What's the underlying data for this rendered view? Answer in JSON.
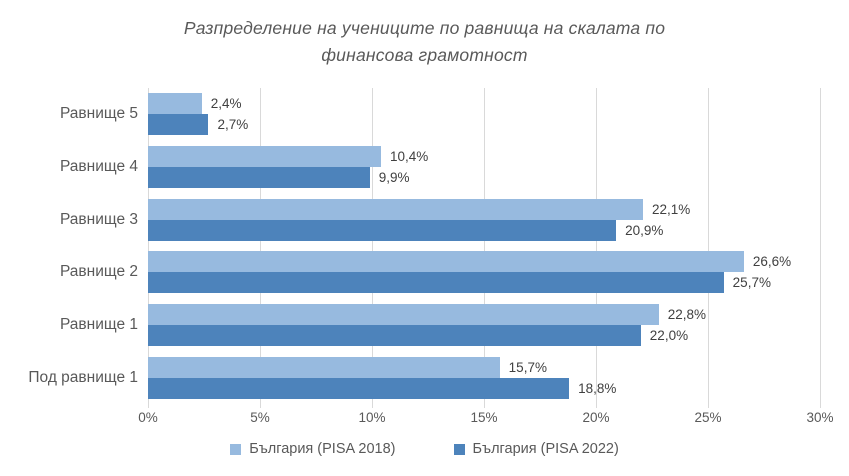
{
  "title_lines": [
    "Разпределение на учениците по равнища на скалата по",
    "финансова грамотност"
  ],
  "colors": {
    "series_pisa_2018": "#97BADF",
    "series_pisa_2022": "#4D83BB",
    "gridline": "#D9D9D9",
    "axis_text": "#595959",
    "data_label_text": "#404040"
  },
  "chart_data": {
    "type": "bar",
    "orientation": "horizontal",
    "title": "Разпределение на учениците по равнища на скалата по финансова грамотност",
    "categories": [
      "Равнище 5",
      "Равнище 4",
      "Равнище 3",
      "Равнище 2",
      "Равнище 1",
      "Под равнище 1"
    ],
    "series": [
      {
        "name": "България (PISA 2018)",
        "color": "#97BADF",
        "values": [
          2.4,
          10.4,
          22.1,
          26.6,
          22.8,
          15.7
        ],
        "data_labels": [
          "2,4%",
          "10,4%",
          "22,1%",
          "26,6%",
          "22,8%",
          "15,7%"
        ]
      },
      {
        "name": "България (PISA 2022)",
        "color": "#4D83BB",
        "values": [
          2.7,
          9.9,
          20.9,
          25.7,
          22.0,
          18.8
        ],
        "data_labels": [
          "2,7%",
          "9,9%",
          "20,9%",
          "25,7%",
          "22,0%",
          "18,8%"
        ]
      }
    ],
    "xlim": [
      0,
      30
    ],
    "x_tick_labels": [
      "0%",
      "5%",
      "10%",
      "15%",
      "20%",
      "25%",
      "30%"
    ],
    "grid": true,
    "legend_position": "bottom"
  }
}
